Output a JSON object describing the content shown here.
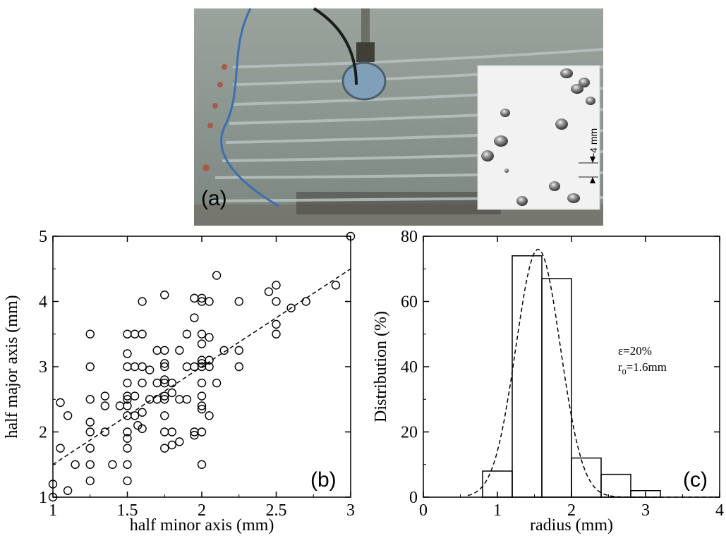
{
  "photo": {
    "panel_label": "(a)",
    "inset_scale_label": "~4 mm",
    "colors": {
      "water": "#8a9590",
      "inset_bg": "#f2f2f2"
    }
  },
  "chart_data": [
    {
      "type": "scatter",
      "panel_label": "(b)",
      "xlabel": "half minor axis (mm)",
      "ylabel": "half major axis (mm)",
      "xlim": [
        1,
        3
      ],
      "ylim": [
        1,
        5
      ],
      "xticks": [
        "1",
        "1.5",
        "2",
        "2.5",
        "3"
      ],
      "yticks": [
        "1",
        "2",
        "3",
        "4",
        "5"
      ],
      "marker": "open-circle",
      "points": [
        [
          1.0,
          1.0
        ],
        [
          1.0,
          1.2
        ],
        [
          1.05,
          1.75
        ],
        [
          1.05,
          2.45
        ],
        [
          1.1,
          1.1
        ],
        [
          1.1,
          2.25
        ],
        [
          1.15,
          1.5
        ],
        [
          1.25,
          1.25
        ],
        [
          1.25,
          1.5
        ],
        [
          1.25,
          1.75
        ],
        [
          1.25,
          2.0
        ],
        [
          1.25,
          2.15
        ],
        [
          1.25,
          2.5
        ],
        [
          1.25,
          3.0
        ],
        [
          1.25,
          3.5
        ],
        [
          1.35,
          2.0
        ],
        [
          1.35,
          2.4
        ],
        [
          1.35,
          2.55
        ],
        [
          1.4,
          1.5
        ],
        [
          1.45,
          2.4
        ],
        [
          1.5,
          1.25
        ],
        [
          1.5,
          1.5
        ],
        [
          1.5,
          1.75
        ],
        [
          1.5,
          1.9
        ],
        [
          1.5,
          2.0
        ],
        [
          1.5,
          2.25
        ],
        [
          1.5,
          2.4
        ],
        [
          1.5,
          2.5
        ],
        [
          1.5,
          2.55
        ],
        [
          1.5,
          2.75
        ],
        [
          1.5,
          3.0
        ],
        [
          1.5,
          3.2
        ],
        [
          1.5,
          3.5
        ],
        [
          1.55,
          2.25
        ],
        [
          1.55,
          2.55
        ],
        [
          1.55,
          3.0
        ],
        [
          1.55,
          3.5
        ],
        [
          1.57,
          2.1
        ],
        [
          1.6,
          2.05
        ],
        [
          1.6,
          2.3
        ],
        [
          1.6,
          2.75
        ],
        [
          1.6,
          3.0
        ],
        [
          1.6,
          3.5
        ],
        [
          1.6,
          4.0
        ],
        [
          1.65,
          2.5
        ],
        [
          1.65,
          2.95
        ],
        [
          1.7,
          2.5
        ],
        [
          1.7,
          2.75
        ],
        [
          1.7,
          3.25
        ],
        [
          1.75,
          1.75
        ],
        [
          1.75,
          2.0
        ],
        [
          1.75,
          2.25
        ],
        [
          1.75,
          2.5
        ],
        [
          1.75,
          2.55
        ],
        [
          1.75,
          2.75
        ],
        [
          1.75,
          2.8
        ],
        [
          1.75,
          3.0
        ],
        [
          1.75,
          3.05
        ],
        [
          1.75,
          3.25
        ],
        [
          1.75,
          4.1
        ],
        [
          1.8,
          1.8
        ],
        [
          1.8,
          2.0
        ],
        [
          1.8,
          2.6
        ],
        [
          1.8,
          2.75
        ],
        [
          1.85,
          1.85
        ],
        [
          1.85,
          2.5
        ],
        [
          1.85,
          3.25
        ],
        [
          1.9,
          2.5
        ],
        [
          1.9,
          3.0
        ],
        [
          1.9,
          3.5
        ],
        [
          1.95,
          1.95
        ],
        [
          1.95,
          2.0
        ],
        [
          1.95,
          3.0
        ],
        [
          1.95,
          3.75
        ],
        [
          1.95,
          4.05
        ],
        [
          2.0,
          1.5
        ],
        [
          2.0,
          2.0
        ],
        [
          2.0,
          2.35
        ],
        [
          2.0,
          2.4
        ],
        [
          2.0,
          2.55
        ],
        [
          2.0,
          2.75
        ],
        [
          2.0,
          3.0
        ],
        [
          2.0,
          3.05
        ],
        [
          2.0,
          3.1
        ],
        [
          2.0,
          3.35
        ],
        [
          2.0,
          3.5
        ],
        [
          2.0,
          4.0
        ],
        [
          2.0,
          4.05
        ],
        [
          2.05,
          2.25
        ],
        [
          2.05,
          3.0
        ],
        [
          2.05,
          3.1
        ],
        [
          2.05,
          3.45
        ],
        [
          2.05,
          4.0
        ],
        [
          2.1,
          2.75
        ],
        [
          2.1,
          4.4
        ],
        [
          2.15,
          3.25
        ],
        [
          2.25,
          3.0
        ],
        [
          2.25,
          3.25
        ],
        [
          2.25,
          4.0
        ],
        [
          2.45,
          4.15
        ],
        [
          2.5,
          3.5
        ],
        [
          2.5,
          3.65
        ],
        [
          2.5,
          4.0
        ],
        [
          2.5,
          4.25
        ],
        [
          2.6,
          3.9
        ],
        [
          2.7,
          4.0
        ],
        [
          2.9,
          4.25
        ],
        [
          3.0,
          5.0
        ]
      ],
      "fit_line": {
        "style": "dashed",
        "x": [
          1.0,
          3.0
        ],
        "y": [
          1.5,
          4.5
        ]
      }
    },
    {
      "type": "bar",
      "panel_label": "(c)",
      "xlabel": "radius (mm)",
      "ylabel": "Distribution (%)",
      "xlim": [
        0,
        4
      ],
      "ylim": [
        0,
        80
      ],
      "xticks": [
        "0",
        "1",
        "2",
        "3",
        "4"
      ],
      "yticks": [
        "0",
        "20",
        "40",
        "60",
        "80"
      ],
      "bins": [
        {
          "x0": 0.8,
          "x1": 1.2,
          "value": 8
        },
        {
          "x0": 1.2,
          "x1": 1.6,
          "value": 74
        },
        {
          "x0": 1.6,
          "x1": 2.0,
          "value": 67
        },
        {
          "x0": 2.0,
          "x1": 2.4,
          "value": 12
        },
        {
          "x0": 2.4,
          "x1": 2.8,
          "value": 7
        },
        {
          "x0": 2.8,
          "x1": 3.2,
          "value": 2
        }
      ],
      "fit_curve": {
        "style": "dashed",
        "peak_x": 1.55,
        "peak_y": 76,
        "sigma": 0.3
      },
      "annotation": {
        "line1": "ε=20%",
        "line2_main": "r",
        "line2_sub": "0",
        "line2_rest": "=1.6mm"
      }
    }
  ]
}
